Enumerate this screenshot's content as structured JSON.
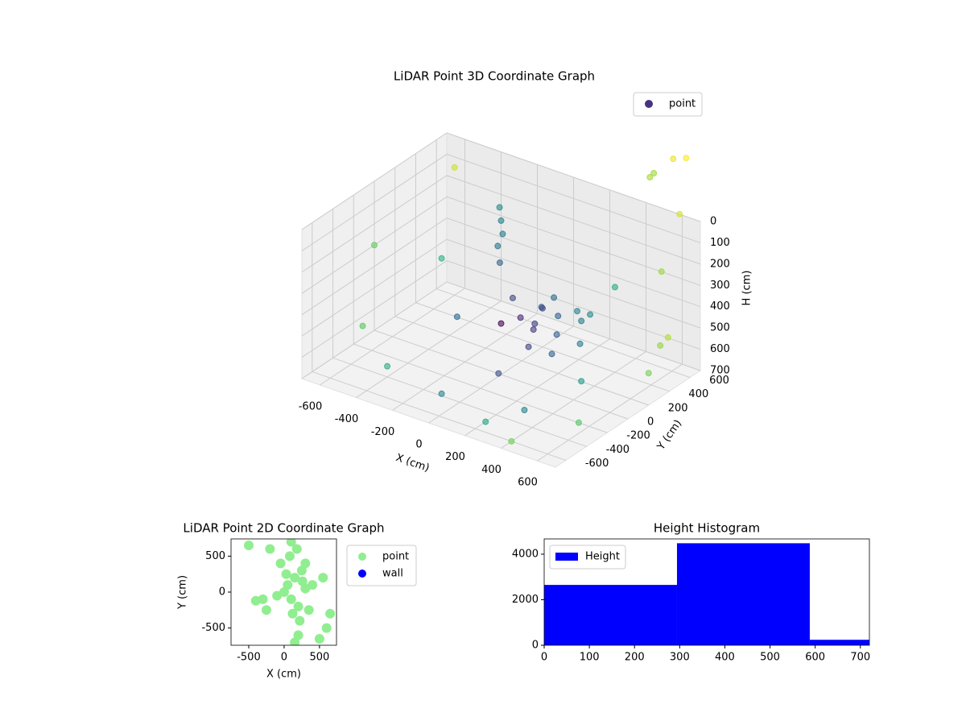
{
  "chart_data": [
    {
      "type": "scatter3d",
      "title": "LiDAR Point 3D Coordinate Graph",
      "xlabel": "X (cm)",
      "ylabel": "Y (cm)",
      "zlabel": "H (cm)",
      "xlim": [
        -700,
        700
      ],
      "ylim": [
        -700,
        700
      ],
      "zlim": [
        0,
        700
      ],
      "z_inverted": true,
      "xticks": [
        -600,
        -400,
        -200,
        0,
        200,
        400,
        600
      ],
      "yticks": [
        -600,
        -400,
        -200,
        0,
        200,
        400,
        600
      ],
      "zticks": [
        0,
        100,
        200,
        300,
        400,
        500,
        600,
        700
      ],
      "grid": true,
      "legend": "upper right",
      "colormap": "viridis",
      "series": [
        {
          "name": "point",
          "color": "#46337e",
          "x": [
            50,
            100,
            150,
            200,
            250,
            300,
            350,
            0,
            -50,
            120,
            180,
            220,
            280,
            320,
            80,
            160,
            -200,
            -180,
            -220,
            -190,
            -150,
            -500,
            -650,
            -400,
            -300,
            200,
            400,
            600,
            500,
            650,
            700,
            550,
            450,
            300,
            -100,
            100,
            650,
            700,
            750,
            600,
            500,
            -600,
            -700,
            400
          ],
          "y": [
            100,
            150,
            50,
            200,
            100,
            250,
            150,
            0,
            200,
            300,
            -50,
            350,
            0,
            300,
            250,
            120,
            350,
            330,
            370,
            300,
            250,
            300,
            -200,
            -400,
            100,
            -500,
            -600,
            -300,
            600,
            650,
            500,
            700,
            650,
            -300,
            -400,
            -200,
            400,
            200,
            300,
            500,
            -100,
            600,
            0,
            400
          ],
          "z": [
            450,
            480,
            460,
            430,
            470,
            440,
            500,
            460,
            420,
            400,
            500,
            450,
            520,
            420,
            440,
            380,
            150,
            200,
            100,
            250,
            300,
            400,
            600,
            650,
            550,
            700,
            700,
            650,
            -200,
            -300,
            -100,
            -250,
            -150,
            680,
            690,
            600,
            500,
            550,
            400,
            200,
            550,
            100,
            300,
            300
          ]
        }
      ]
    },
    {
      "type": "scatter",
      "title": "LiDAR Point 2D Coordinate Graph",
      "xlabel": "X (cm)",
      "ylabel": "Y (cm)",
      "xlim": [
        -750,
        740
      ],
      "ylim": [
        -740,
        740
      ],
      "xticks": [
        -500,
        0,
        500
      ],
      "yticks": [
        -500,
        0,
        500
      ],
      "legend": "outside right",
      "series": [
        {
          "name": "point",
          "color": "lightgreen",
          "x": [
            0,
            50,
            100,
            150,
            200,
            250,
            300,
            -50,
            80,
            120,
            180,
            220,
            260,
            -100,
            30,
            350,
            400,
            -300,
            -400,
            -500,
            550,
            600,
            500,
            100,
            200,
            -200,
            300,
            650,
            -250,
            150
          ],
          "y": [
            0,
            100,
            -100,
            200,
            -200,
            300,
            50,
            400,
            500,
            -300,
            600,
            -400,
            150,
            -50,
            250,
            -250,
            100,
            -100,
            -120,
            650,
            200,
            -500,
            -650,
            700,
            -600,
            600,
            400,
            -300,
            -250,
            -700
          ]
        },
        {
          "name": "wall",
          "color": "blue",
          "x": [],
          "y": []
        }
      ]
    },
    {
      "type": "histogram",
      "title": "Height Histogram",
      "xlim": [
        0,
        720
      ],
      "ylim": [
        0,
        4670
      ],
      "xticks": [
        0,
        100,
        200,
        300,
        400,
        500,
        600,
        700
      ],
      "yticks": [
        0,
        2000,
        4000
      ],
      "legend": "upper left",
      "bins": [
        0,
        294,
        588,
        720
      ],
      "series": [
        {
          "name": "Height",
          "color": "blue",
          "values": [
            2650,
            4480,
            240
          ]
        }
      ]
    }
  ]
}
